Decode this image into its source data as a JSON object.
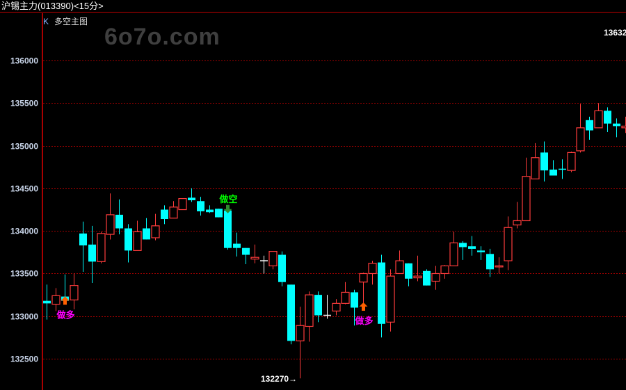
{
  "header": {
    "title": "沪锡主力(013390)<15分>",
    "indicator_k": "K",
    "indicator_name": "多空主图"
  },
  "watermark": "6o7o.com",
  "top_right_label": "13632",
  "colors": {
    "up": "#ff3c3c",
    "down": "#00ffff",
    "flat": "#ffffff",
    "grid": "#a00000",
    "axis": "#e00000",
    "long_signal": "#ff00ff",
    "short_signal": "#00ff00",
    "arrow_up": "#ff6000",
    "arrow_down": "#2e8b2e"
  },
  "chart_data": {
    "type": "candlestick",
    "title": "沪锡主力(013390)<15分>",
    "ylim": [
      132300,
      136370
    ],
    "yticks": [
      132500,
      133000,
      133500,
      134000,
      134500,
      135000,
      135500,
      136000
    ],
    "yticks_labels": [
      "132500",
      "133000",
      "133500",
      "134000",
      "134500",
      "135000",
      "135500",
      "136000"
    ],
    "grid": true,
    "candles_ohlc": [
      [
        133180,
        133370,
        132960,
        133150
      ],
      [
        133140,
        133330,
        133060,
        133240
      ],
      [
        133230,
        133490,
        133150,
        133180
      ],
      [
        133190,
        133500,
        133080,
        133360
      ],
      [
        133970,
        134110,
        133520,
        133830
      ],
      [
        133840,
        134060,
        133390,
        133640
      ],
      [
        133640,
        133990,
        133620,
        133970
      ],
      [
        133960,
        134440,
        133900,
        134190
      ],
      [
        134190,
        134370,
        133960,
        134030
      ],
      [
        134030,
        134080,
        133630,
        133770
      ],
      [
        133770,
        134120,
        133770,
        133990
      ],
      [
        134030,
        134150,
        133900,
        133900
      ],
      [
        133920,
        134200,
        133890,
        134060
      ],
      [
        134250,
        134300,
        134080,
        134140
      ],
      [
        134150,
        134350,
        134150,
        134280
      ],
      [
        134250,
        134380,
        134250,
        134380
      ],
      [
        134390,
        134500,
        134340,
        134360
      ],
      [
        134350,
        134400,
        134180,
        134230
      ],
      [
        134250,
        134300,
        134210,
        134220
      ],
      [
        134260,
        134260,
        134160,
        134160
      ],
      [
        134240,
        134240,
        133780,
        133800
      ],
      [
        133850,
        133980,
        133700,
        133800
      ],
      [
        133800,
        133800,
        133610,
        133720
      ],
      [
        133670,
        133840,
        133620,
        133690
      ],
      [
        133650,
        133710,
        133500,
        133650
      ],
      [
        133590,
        133760,
        133550,
        133760
      ],
      [
        133720,
        133760,
        133350,
        133400
      ],
      [
        133370,
        133370,
        132670,
        132710
      ],
      [
        132710,
        133110,
        132270,
        132890
      ],
      [
        132880,
        133290,
        132700,
        133250
      ],
      [
        133250,
        133290,
        132930,
        133010
      ],
      [
        133010,
        133250,
        132970,
        133010
      ],
      [
        133060,
        133200,
        133010,
        133150
      ],
      [
        133150,
        133400,
        133140,
        133280
      ],
      [
        133280,
        133310,
        132890,
        133100
      ],
      [
        133400,
        133510,
        133080,
        133500
      ],
      [
        133500,
        133650,
        133370,
        133620
      ],
      [
        133630,
        133720,
        132750,
        132910
      ],
      [
        132930,
        133550,
        132820,
        133470
      ],
      [
        133500,
        133770,
        133500,
        133650
      ],
      [
        133620,
        133620,
        133350,
        133440
      ],
      [
        133450,
        133710,
        133410,
        133470
      ],
      [
        133530,
        133550,
        133360,
        133360
      ],
      [
        133410,
        133590,
        133310,
        133500
      ],
      [
        133500,
        133600,
        133440,
        133590
      ],
      [
        133590,
        133990,
        133590,
        133860
      ],
      [
        133860,
        133880,
        133660,
        133810
      ],
      [
        133820,
        133940,
        133710,
        133790
      ],
      [
        133770,
        133820,
        133660,
        133750
      ],
      [
        133730,
        133790,
        133460,
        133550
      ],
      [
        133580,
        133690,
        133500,
        133590
      ],
      [
        133650,
        134170,
        133540,
        134040
      ],
      [
        134070,
        134340,
        134030,
        134120
      ],
      [
        134120,
        134860,
        134120,
        134640
      ],
      [
        134610,
        135030,
        134610,
        134860
      ],
      [
        134920,
        135050,
        134580,
        134710
      ],
      [
        134720,
        134830,
        134650,
        134650
      ],
      [
        134730,
        134840,
        134610,
        134720
      ],
      [
        134710,
        134930,
        134690,
        134920
      ],
      [
        134940,
        135490,
        134920,
        135210
      ],
      [
        135300,
        135340,
        135070,
        135180
      ],
      [
        135210,
        135500,
        135210,
        135410
      ],
      [
        135410,
        135450,
        135160,
        135260
      ],
      [
        135260,
        135320,
        135100,
        135230
      ],
      [
        135210,
        135340,
        135150,
        135230
      ]
    ],
    "low_marker": {
      "value": 132270,
      "label": "132270→"
    },
    "signals": [
      {
        "index": 2,
        "type": "long",
        "label": "做多"
      },
      {
        "index": 20,
        "type": "short",
        "label": "做空"
      },
      {
        "index": 35,
        "type": "long",
        "label": "做多"
      }
    ]
  }
}
